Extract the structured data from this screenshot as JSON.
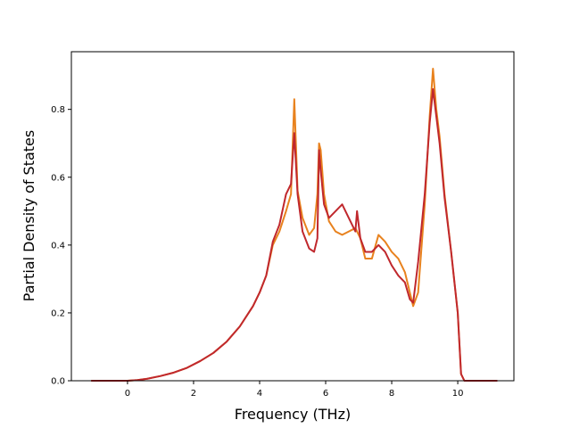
{
  "chart_data": {
    "type": "line",
    "title": "",
    "xlabel": "Frequency (THz)",
    "ylabel": "Partial Density of States",
    "xlim": [
      -1.7,
      11.7
    ],
    "ylim": [
      0.0,
      0.97
    ],
    "xticks": [
      0,
      2,
      4,
      6,
      8,
      10
    ],
    "xtick_labels": [
      "0",
      "2",
      "4",
      "6",
      "8",
      "10"
    ],
    "yticks": [
      0.0,
      0.2,
      0.4,
      0.6,
      0.8
    ],
    "ytick_labels": [
      "0.0",
      "0.2",
      "0.4",
      "0.6",
      "0.8"
    ],
    "grid": false,
    "legend": "none",
    "series": [
      {
        "color": "#e8821e",
        "x": [
          -1.1,
          -0.5,
          0.0,
          0.3,
          0.6,
          1.0,
          1.4,
          1.8,
          2.2,
          2.6,
          3.0,
          3.4,
          3.8,
          4.0,
          4.2,
          4.4,
          4.6,
          4.8,
          4.95,
          5.05,
          5.15,
          5.3,
          5.5,
          5.65,
          5.75,
          5.8,
          5.85,
          5.95,
          6.1,
          6.3,
          6.5,
          6.7,
          6.9,
          7.05,
          7.2,
          7.4,
          7.6,
          7.8,
          8.0,
          8.2,
          8.4,
          8.55,
          8.65,
          8.8,
          9.0,
          9.15,
          9.25,
          9.35,
          9.45,
          9.6,
          9.8,
          10.0,
          10.1,
          10.2,
          10.3,
          10.6,
          11.2
        ],
        "y": [
          0.0,
          0.0,
          0.0,
          0.002,
          0.006,
          0.014,
          0.024,
          0.038,
          0.058,
          0.082,
          0.115,
          0.16,
          0.22,
          0.26,
          0.31,
          0.4,
          0.44,
          0.5,
          0.55,
          0.83,
          0.56,
          0.48,
          0.43,
          0.45,
          0.55,
          0.7,
          0.68,
          0.55,
          0.47,
          0.44,
          0.43,
          0.44,
          0.45,
          0.42,
          0.36,
          0.36,
          0.43,
          0.41,
          0.38,
          0.36,
          0.32,
          0.26,
          0.22,
          0.26,
          0.52,
          0.78,
          0.92,
          0.8,
          0.72,
          0.55,
          0.38,
          0.2,
          0.02,
          0.0,
          0.0,
          0.0,
          0.0
        ]
      },
      {
        "color": "#c0282d",
        "x": [
          -1.1,
          -0.5,
          0.0,
          0.3,
          0.6,
          1.0,
          1.4,
          1.8,
          2.2,
          2.6,
          3.0,
          3.4,
          3.8,
          4.0,
          4.2,
          4.4,
          4.6,
          4.8,
          4.95,
          5.05,
          5.15,
          5.3,
          5.5,
          5.65,
          5.75,
          5.8,
          5.85,
          5.95,
          6.1,
          6.3,
          6.5,
          6.7,
          6.9,
          6.95,
          7.05,
          7.2,
          7.4,
          7.6,
          7.8,
          8.0,
          8.2,
          8.4,
          8.55,
          8.65,
          8.8,
          9.0,
          9.15,
          9.25,
          9.35,
          9.45,
          9.6,
          9.8,
          10.0,
          10.1,
          10.2,
          10.3,
          10.6,
          11.2
        ],
        "y": [
          0.0,
          0.0,
          0.0,
          0.002,
          0.006,
          0.014,
          0.024,
          0.038,
          0.058,
          0.082,
          0.115,
          0.16,
          0.22,
          0.26,
          0.31,
          0.41,
          0.46,
          0.55,
          0.58,
          0.73,
          0.55,
          0.44,
          0.39,
          0.38,
          0.42,
          0.68,
          0.62,
          0.52,
          0.48,
          0.5,
          0.52,
          0.48,
          0.44,
          0.5,
          0.42,
          0.38,
          0.38,
          0.4,
          0.38,
          0.34,
          0.31,
          0.29,
          0.24,
          0.23,
          0.35,
          0.55,
          0.76,
          0.86,
          0.78,
          0.7,
          0.54,
          0.38,
          0.2,
          0.02,
          0.0,
          0.0,
          0.0,
          0.0
        ]
      }
    ]
  }
}
